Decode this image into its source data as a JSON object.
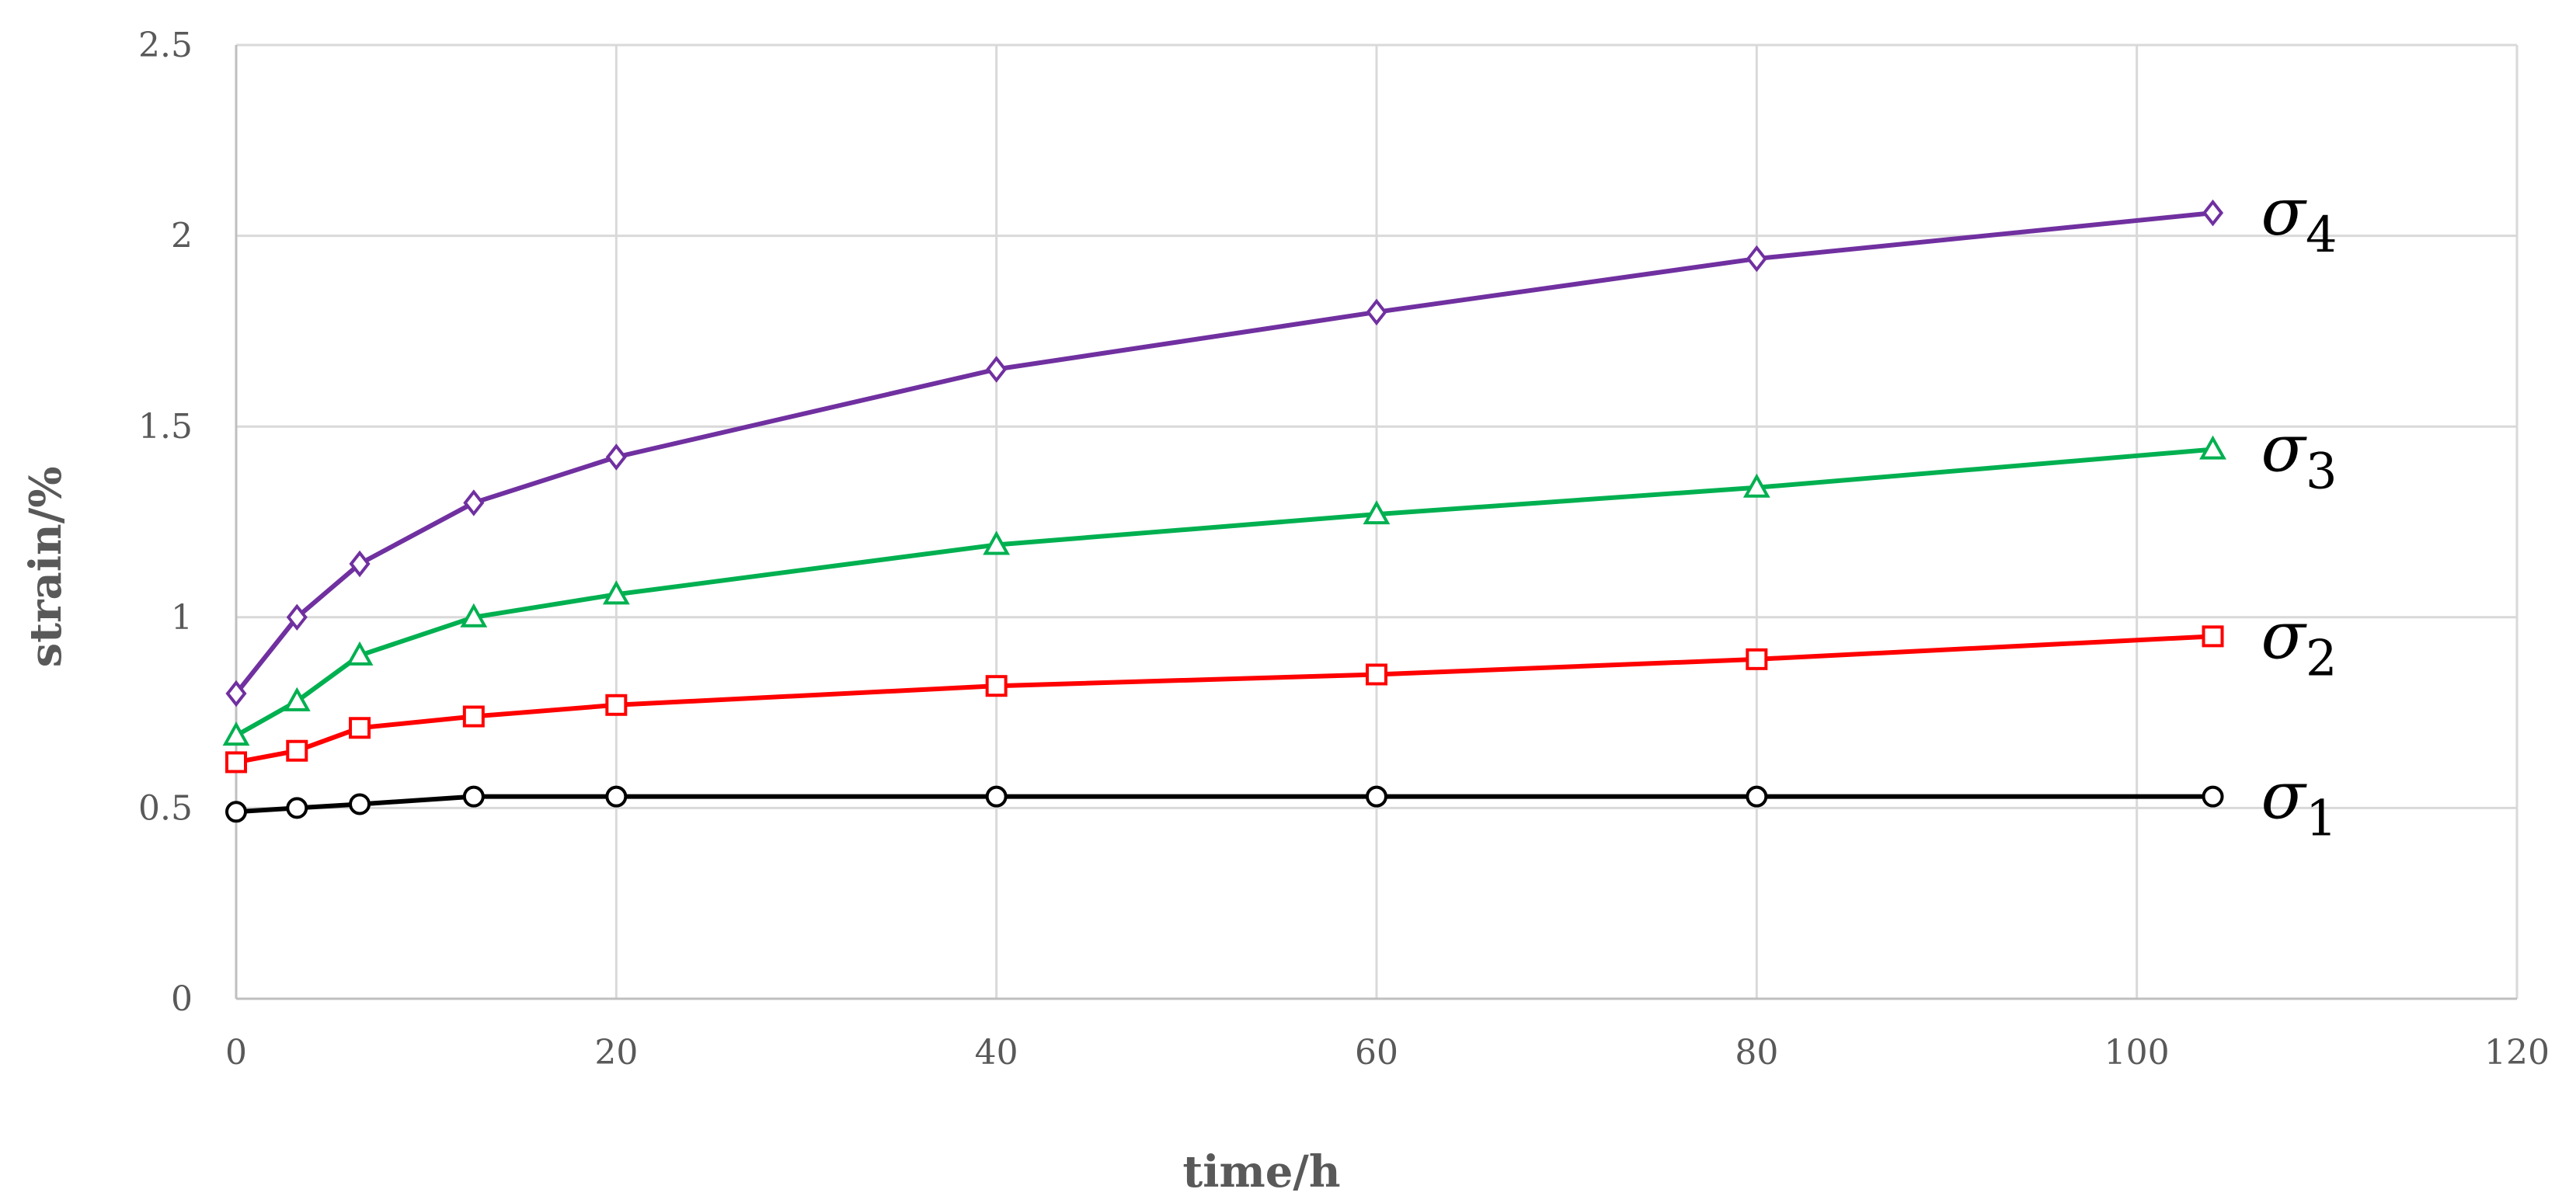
{
  "chart_data": {
    "type": "line",
    "title": "",
    "xlabel": "time/h",
    "ylabel": "strain/%",
    "xlim": [
      0,
      120
    ],
    "ylim": [
      0,
      2.5
    ],
    "x_ticks": [
      "0",
      "20",
      "40",
      "60",
      "80",
      "100",
      "120"
    ],
    "y_ticks": [
      "0",
      "0.5",
      "1",
      "1.5",
      "2",
      "2.5"
    ],
    "grid": true,
    "series": [
      {
        "name": "σ1",
        "label_base": "σ",
        "label_sub": "1",
        "color": "#000000",
        "marker": "circle",
        "x": [
          0,
          3.2,
          6.5,
          12.5,
          20,
          40,
          60,
          80,
          104
        ],
        "y": [
          0.49,
          0.5,
          0.51,
          0.53,
          0.53,
          0.53,
          0.53,
          0.53,
          0.53
        ]
      },
      {
        "name": "σ2",
        "label_base": "σ",
        "label_sub": "2",
        "color": "#ff0000",
        "marker": "square",
        "x": [
          0,
          3.2,
          6.5,
          12.5,
          20,
          40,
          60,
          80,
          104
        ],
        "y": [
          0.62,
          0.65,
          0.71,
          0.74,
          0.77,
          0.82,
          0.85,
          0.89,
          0.95
        ]
      },
      {
        "name": "σ3",
        "label_base": "σ",
        "label_sub": "3",
        "color": "#00b050",
        "marker": "triangle",
        "x": [
          0,
          3.2,
          6.5,
          12.5,
          20,
          40,
          60,
          80,
          104
        ],
        "y": [
          0.69,
          0.78,
          0.9,
          1.0,
          1.06,
          1.19,
          1.27,
          1.34,
          1.44
        ]
      },
      {
        "name": "σ4",
        "label_base": "σ",
        "label_sub": "4",
        "color": "#7030a0",
        "marker": "diamond",
        "x": [
          0,
          3.2,
          6.5,
          12.5,
          20,
          40,
          60,
          80,
          104
        ],
        "y": [
          0.8,
          1.0,
          1.14,
          1.3,
          1.42,
          1.65,
          1.8,
          1.94,
          2.06
        ]
      }
    ]
  }
}
